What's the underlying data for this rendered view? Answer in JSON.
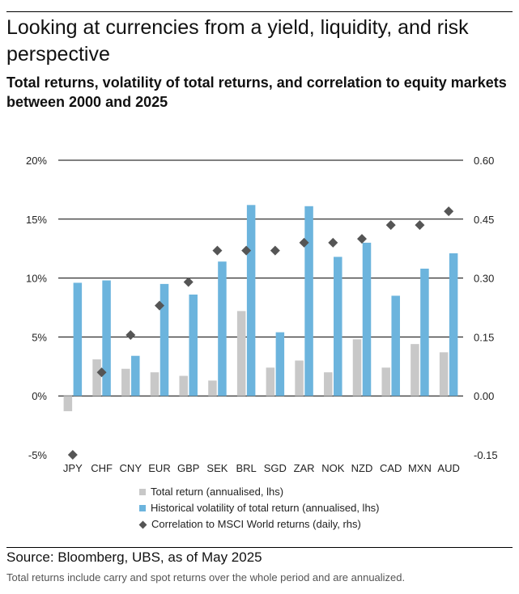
{
  "header": {
    "title": "Looking at currencies from a yield, liquidity, and risk perspective",
    "subtitle": "Total returns, volatility of total returns, and correlation to equity markets between 2000 and 2025"
  },
  "colors": {
    "total_return": "#c8c8c8",
    "volatility": "#6cb4dd",
    "correlation": "#555555",
    "gridline": "#000000"
  },
  "chart_data": {
    "type": "bar",
    "categories": [
      "JPY",
      "CHF",
      "CNY",
      "EUR",
      "GBP",
      "SEK",
      "BRL",
      "SGD",
      "ZAR",
      "NOK",
      "NZD",
      "CAD",
      "MXN",
      "AUD"
    ],
    "series": [
      {
        "name": "Total return (annualised, lhs)",
        "axis": "left",
        "kind": "bar",
        "values": [
          -1.3,
          3.1,
          2.3,
          2.0,
          1.7,
          1.3,
          7.2,
          2.4,
          3.0,
          2.0,
          4.8,
          2.4,
          4.4,
          3.7
        ]
      },
      {
        "name": "Historical volatility of total return (annualised, lhs)",
        "axis": "left",
        "kind": "bar",
        "values": [
          9.6,
          9.8,
          3.4,
          9.5,
          8.6,
          11.4,
          16.2,
          5.4,
          16.1,
          11.8,
          13.0,
          8.5,
          10.8,
          12.1
        ]
      },
      {
        "name": "Correlation to MSCI World returns (daily, rhs)",
        "axis": "right",
        "kind": "scatter",
        "values": [
          -0.15,
          0.06,
          0.155,
          0.23,
          0.29,
          0.37,
          0.37,
          0.37,
          0.39,
          0.39,
          0.4,
          0.435,
          0.435,
          0.47
        ]
      }
    ],
    "left_axis": {
      "ylim": [
        -5,
        20
      ],
      "ticks": [
        20,
        15,
        10,
        5,
        0,
        -5
      ],
      "tick_labels": [
        "20%",
        "15%",
        "10%",
        "5%",
        "0%",
        "-5%"
      ]
    },
    "right_axis": {
      "ylim": [
        -0.15,
        0.6
      ],
      "ticks": [
        0.6,
        0.45,
        0.3,
        0.15,
        0,
        -0.15
      ],
      "tick_labels": [
        "0.60",
        "0.45",
        "0.30",
        "0.15",
        "0.00",
        "-0.15"
      ]
    },
    "grid": true,
    "legend_position": "bottom"
  },
  "legend": {
    "items": [
      {
        "label": "Total return (annualised, lhs)"
      },
      {
        "label": "Historical volatility of total return (annualised, lhs)"
      },
      {
        "label": "Correlation to MSCI World returns (daily, rhs)"
      }
    ]
  },
  "footer": {
    "source": "Source: Bloomberg, UBS, as of May 2025",
    "note": "Total returns include carry and spot returns over the whole period and are annualized."
  }
}
